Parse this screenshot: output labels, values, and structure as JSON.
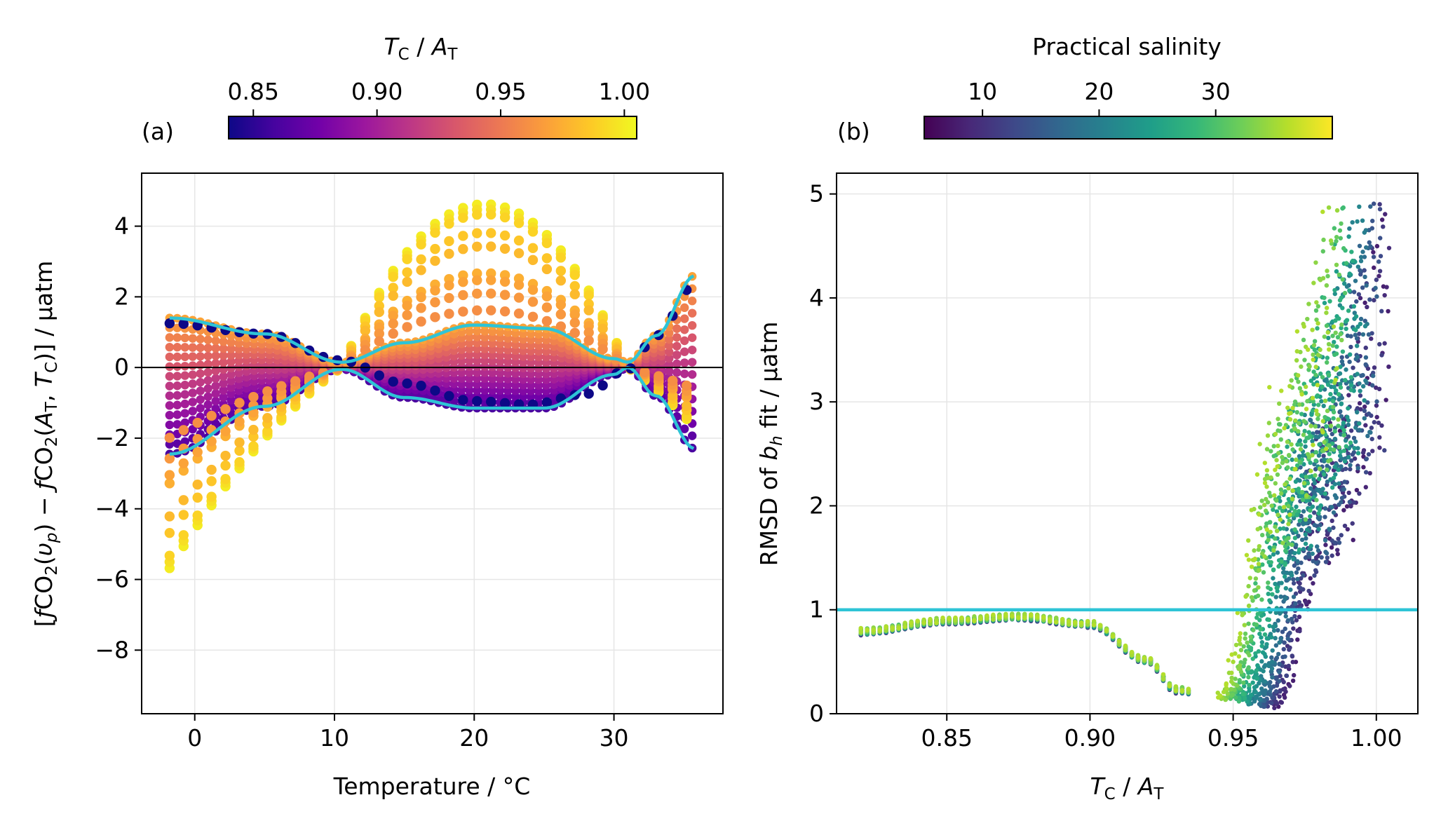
{
  "colors": {
    "plasma": [
      "#0d0887",
      "#46039f",
      "#7201a8",
      "#9c179e",
      "#bd3786",
      "#d8576b",
      "#ed7953",
      "#fb9f3a",
      "#fdca26",
      "#f0f921"
    ],
    "viridis": [
      "#440154",
      "#482878",
      "#3e4989",
      "#31688e",
      "#26828e",
      "#1f9e89",
      "#35b779",
      "#6ece58",
      "#b5de2b",
      "#fde725"
    ],
    "envelope": "#2ec4d6",
    "reference": "#000000",
    "grid": "#e6e6e6"
  },
  "chart_data": [
    {
      "type": "scatter",
      "panel_label": "(a)",
      "xlabel": "Temperature / °C",
      "ylabel": "[ƒCO₂(υₚ) − ƒCO₂(A_T, T_C)] / µatm",
      "xlim": [
        -3.8,
        37.8
      ],
      "ylim": [
        -9.8,
        5.5
      ],
      "xticks": [
        0,
        10,
        20,
        30
      ],
      "yticks": [
        4,
        2,
        0,
        -2,
        -4,
        -6,
        -8
      ],
      "ytick_labels": [
        "4",
        "2",
        "0",
        "−2",
        "−4",
        "−6",
        "−8"
      ],
      "grid": true,
      "colorbar": {
        "label": "T_C / A_T",
        "range": [
          0.84,
          1.005
        ],
        "ticks": [
          0.85,
          0.9,
          0.95,
          1.0
        ],
        "tick_labels": [
          "0.85",
          "0.90",
          "0.95",
          "1.00"
        ],
        "colormap": "plasma",
        "position": "top"
      },
      "x_range_data": [
        -1.8,
        35.8
      ],
      "series": [
        {
          "color_value": 1.0,
          "peak": 4.85,
          "curve": "positive-hump"
        },
        {
          "color_value": 0.995,
          "peak": 4.7
        },
        {
          "color_value": 0.99,
          "peak": 4.55
        },
        {
          "color_value": 0.985,
          "peak": 4.0
        },
        {
          "color_value": 0.98,
          "peak": 3.6
        },
        {
          "color_value": 0.975,
          "peak": 2.8
        },
        {
          "color_value": 0.97,
          "peak": 2.6
        },
        {
          "color_value": 0.965,
          "peak": 2.2
        },
        {
          "color_value": 0.96,
          "peak": 1.7
        },
        {
          "color_value": 0.84,
          "peak": -1.1,
          "curve": "negative-dip"
        }
      ],
      "envelope_upper": {
        "x": [
          -1.8,
          5,
          10.5,
          15,
          20,
          25,
          30,
          31,
          33,
          35.8
        ],
        "y": [
          1.4,
          0.95,
          0.15,
          0.7,
          1.2,
          1.1,
          0.25,
          0.15,
          0.9,
          2.6
        ]
      },
      "envelope_lower": {
        "x": [
          -1.8,
          5,
          10.5,
          15,
          20,
          25,
          30,
          31,
          33,
          35.8
        ],
        "y": [
          -2.45,
          -1.1,
          -0.05,
          -0.85,
          -1.15,
          -1.15,
          -0.2,
          0.0,
          -0.8,
          -2.3
        ]
      },
      "reference_line_y": 0
    },
    {
      "type": "scatter",
      "panel_label": "(b)",
      "xlabel": "T_C / A_T",
      "ylabel": "RMSD of b_h fit / µatm",
      "xlim": [
        0.8115,
        1.0145
      ],
      "ylim": [
        0,
        5.2
      ],
      "xticks": [
        0.85,
        0.9,
        0.95,
        1.0
      ],
      "xtick_labels": [
        "0.85",
        "0.90",
        "0.95",
        "1.00"
      ],
      "yticks": [
        0,
        1,
        2,
        3,
        4,
        5
      ],
      "grid": true,
      "colorbar": {
        "label": "Practical salinity",
        "range": [
          5,
          40
        ],
        "ticks": [
          10,
          20,
          30
        ],
        "tick_labels": [
          "10",
          "20",
          "30"
        ],
        "colormap": "viridis",
        "position": "top"
      },
      "threshold_line_y": 1,
      "baseline_curve": {
        "x": [
          0.82,
          0.85,
          0.875,
          0.9,
          0.92,
          0.93,
          0.94
        ],
        "y": [
          0.78,
          0.88,
          0.92,
          0.85,
          0.5,
          0.22,
          0.18
        ]
      },
      "rising_branch": {
        "salinity_low": {
          "x": [
            0.965,
            0.985,
            1.005
          ],
          "y": [
            0.1,
            2.8,
            4.95
          ]
        },
        "salinity_high": {
          "x": [
            0.945,
            0.965,
            0.985
          ],
          "y": [
            0.25,
            3.2,
            5.05
          ]
        }
      }
    }
  ]
}
